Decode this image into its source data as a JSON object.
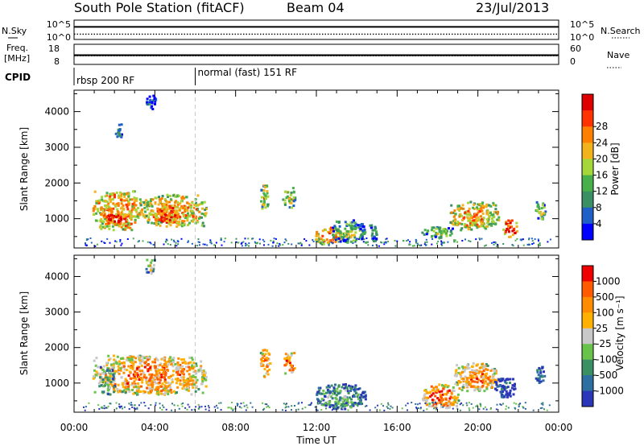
{
  "header": {
    "station": "South Pole Station (fitACF)",
    "beam": "Beam 04",
    "date": "23/Jul/2013"
  },
  "chart_data": [
    {
      "type": "line",
      "panel": "noise",
      "left_label": "N.Sky",
      "right_label": "N.Search",
      "left_ticks": [
        "10^5",
        "10^0"
      ],
      "right_ticks": [
        "10^5",
        "10^0"
      ],
      "series": [
        {
          "name": "N.Sky",
          "style": "solid",
          "values": [
            3.5,
            3.5,
            3.5,
            3.5,
            3.5,
            3.5,
            3.5
          ]
        },
        {
          "name": "N.Search",
          "style": "dotted",
          "values": [
            1.0,
            1.0,
            1.0,
            1.0,
            1.0,
            1.0,
            1.0
          ]
        }
      ]
    },
    {
      "type": "line",
      "panel": "frequency",
      "left_label_1": "Freq.",
      "left_label_2": "[MHz]",
      "right_label": "Nave",
      "left_ticks": [
        "18",
        "8"
      ],
      "right_ticks": [
        "60",
        "0"
      ],
      "series": [
        {
          "name": "Freq.",
          "style": "solid",
          "values": [
            12.5,
            12.5,
            12.5,
            12.5,
            12.5,
            12.5,
            12.5
          ]
        },
        {
          "name": "Nave",
          "style": "dotted",
          "values": [
            25,
            25,
            25,
            25,
            25,
            25,
            25
          ]
        }
      ]
    },
    {
      "type": "table",
      "panel": "cpid",
      "label": "CPID",
      "segments": [
        {
          "start_hour": 0,
          "end_hour": 6,
          "label": "rbsp 200 RF"
        },
        {
          "start_hour": 6,
          "end_hour": 24,
          "label": "normal (fast) 151 RF"
        }
      ]
    },
    {
      "type": "heatmap",
      "panel": "power",
      "ylabel": "Slant Range [km]",
      "ylim": [
        180,
        4600
      ],
      "yticks": [
        "1000",
        "2000",
        "3000",
        "4000"
      ],
      "colorbar": {
        "label": "Power [dB]",
        "ticks": [
          "4",
          "8",
          "12",
          "16",
          "20",
          "24",
          "28"
        ],
        "colors": [
          "#0000ff",
          "#1f5fc8",
          "#3a8f63",
          "#48b04b",
          "#a5d63a",
          "#f2b21c",
          "#ff7f00",
          "#ff3300",
          "#dd0000"
        ]
      },
      "regions": [
        {
          "t0": 0.9,
          "t1": 3.3,
          "r0": 700,
          "r1": 1800,
          "level": 0.75
        },
        {
          "t0": 3.3,
          "t1": 6.5,
          "r0": 800,
          "r1": 1700,
          "level": 0.7
        },
        {
          "t0": 1.5,
          "t1": 2.6,
          "r0": 850,
          "r1": 1250,
          "level": 0.95
        },
        {
          "t0": 3.9,
          "t1": 5.2,
          "r0": 900,
          "r1": 1350,
          "level": 0.9
        },
        {
          "t0": 3.5,
          "t1": 4.0,
          "r0": 4100,
          "r1": 4500,
          "level": 0.2
        },
        {
          "t0": 2.0,
          "t1": 2.4,
          "r0": 3300,
          "r1": 3700,
          "level": 0.3
        },
        {
          "t0": 9.2,
          "t1": 9.6,
          "r0": 1300,
          "r1": 2000,
          "level": 0.6
        },
        {
          "t0": 10.3,
          "t1": 10.9,
          "r0": 1300,
          "r1": 1900,
          "level": 0.55
        },
        {
          "t0": 11.9,
          "t1": 13.2,
          "r0": 300,
          "r1": 800,
          "level": 0.8
        },
        {
          "t0": 12.7,
          "t1": 14.4,
          "r0": 350,
          "r1": 1000,
          "level": 0.45
        },
        {
          "t0": 14.6,
          "t1": 15.0,
          "r0": 400,
          "r1": 900,
          "level": 0.3
        },
        {
          "t0": 17.2,
          "t1": 18.8,
          "r0": 500,
          "r1": 800,
          "level": 0.45
        },
        {
          "t0": 18.5,
          "t1": 21.0,
          "r0": 700,
          "r1": 1500,
          "level": 0.7
        },
        {
          "t0": 21.2,
          "t1": 21.9,
          "r0": 500,
          "r1": 1000,
          "level": 0.9
        },
        {
          "t0": 22.8,
          "t1": 23.3,
          "r0": 1000,
          "r1": 1500,
          "level": 0.5
        }
      ]
    },
    {
      "type": "heatmap",
      "panel": "velocity",
      "ylabel": "Slant Range [km]",
      "ylim": [
        180,
        4600
      ],
      "yticks": [
        "1000",
        "2000",
        "3000",
        "4000"
      ],
      "colorbar": {
        "label": "Velocity [m s⁻¹]",
        "ticks": [
          "1000",
          "500",
          "100",
          "25",
          "-25",
          "-100",
          "-500",
          "-1000"
        ],
        "colors": [
          "#2b36b8",
          "#2d6fa0",
          "#3a8f63",
          "#69c24a",
          "#c8c8c8",
          "#ffb000",
          "#ff8c00",
          "#ff5a00",
          "#ee0000"
        ]
      },
      "regions": [
        {
          "t0": 0.9,
          "t1": 6.5,
          "r0": 700,
          "r1": 1800,
          "level": 0.75
        },
        {
          "t0": 1.2,
          "t1": 2.0,
          "r0": 700,
          "r1": 1500,
          "level": 0.45
        },
        {
          "t0": 3.5,
          "t1": 4.0,
          "r0": 4100,
          "r1": 4500,
          "level": 0.5
        },
        {
          "t0": 9.2,
          "t1": 9.7,
          "r0": 1200,
          "r1": 2000,
          "level": 0.8
        },
        {
          "t0": 10.3,
          "t1": 10.9,
          "r0": 1300,
          "r1": 1900,
          "level": 0.8
        },
        {
          "t0": 11.9,
          "t1": 14.4,
          "r0": 300,
          "r1": 1000,
          "level": 0.35
        },
        {
          "t0": 17.2,
          "t1": 19.0,
          "r0": 300,
          "r1": 1000,
          "level": 0.8
        },
        {
          "t0": 18.8,
          "t1": 21.0,
          "r0": 800,
          "r1": 1600,
          "level": 0.75
        },
        {
          "t0": 20.8,
          "t1": 21.8,
          "r0": 600,
          "r1": 1200,
          "level": 0.15
        },
        {
          "t0": 22.8,
          "t1": 23.3,
          "r0": 1000,
          "r1": 1500,
          "level": 0.3
        }
      ]
    }
  ],
  "x_axis": {
    "label": "Time UT",
    "ticks": [
      "00:00",
      "04:00",
      "08:00",
      "12:00",
      "16:00",
      "20:00",
      "00:00"
    ],
    "range_hours": [
      0,
      24
    ]
  }
}
